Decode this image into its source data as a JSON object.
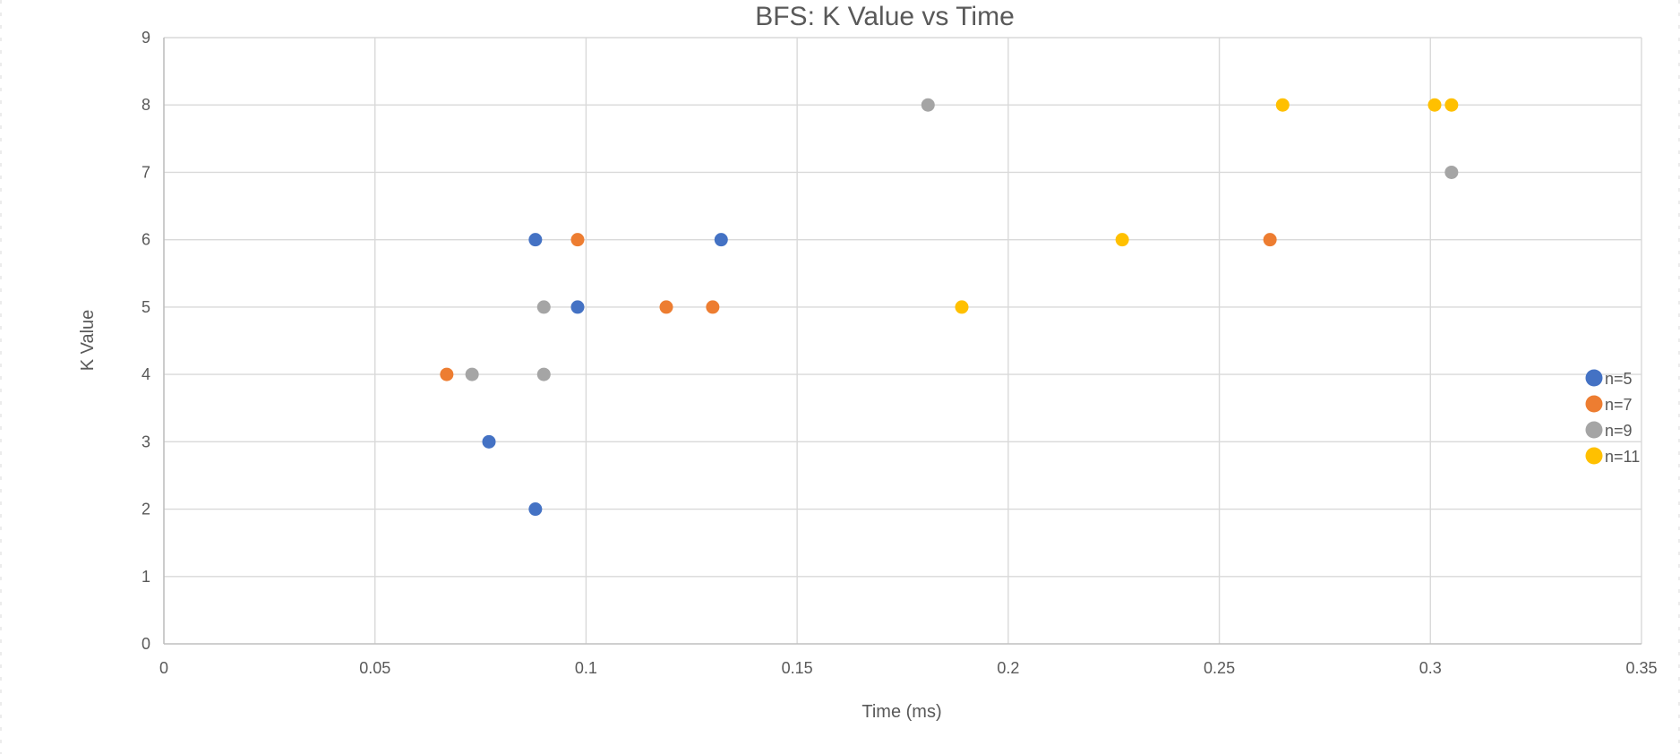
{
  "chart_data": {
    "type": "scatter",
    "title": "BFS: K Value vs Time",
    "xlabel": "Time (ms)",
    "ylabel": "K Value",
    "xlim": [
      0,
      0.35
    ],
    "ylim": [
      0,
      9
    ],
    "x_ticks": [
      0,
      0.05,
      0.1,
      0.15,
      0.2,
      0.25,
      0.3,
      0.35
    ],
    "x_tick_labels": [
      "0",
      "0.05",
      "0.1",
      "0.15",
      "0.2",
      "0.25",
      "0.3",
      "0.35"
    ],
    "y_ticks": [
      0,
      1,
      2,
      3,
      4,
      5,
      6,
      7,
      8,
      9
    ],
    "y_tick_labels": [
      "0",
      "1",
      "2",
      "3",
      "4",
      "5",
      "6",
      "7",
      "8",
      "9"
    ],
    "grid": true,
    "legend_position": "right",
    "series": [
      {
        "name": "n=5",
        "color": "#4472c4",
        "points": [
          {
            "x": 0.088,
            "y": 2
          },
          {
            "x": 0.077,
            "y": 3
          },
          {
            "x": 0.098,
            "y": 5
          },
          {
            "x": 0.088,
            "y": 6
          },
          {
            "x": 0.132,
            "y": 6
          }
        ]
      },
      {
        "name": "n=7",
        "color": "#ed7d31",
        "points": [
          {
            "x": 0.067,
            "y": 4
          },
          {
            "x": 0.119,
            "y": 5
          },
          {
            "x": 0.13,
            "y": 5
          },
          {
            "x": 0.098,
            "y": 6
          },
          {
            "x": 0.262,
            "y": 6
          }
        ]
      },
      {
        "name": "n=9",
        "color": "#a5a5a5",
        "points": [
          {
            "x": 0.073,
            "y": 4
          },
          {
            "x": 0.09,
            "y": 4
          },
          {
            "x": 0.09,
            "y": 5
          },
          {
            "x": 0.305,
            "y": 7
          },
          {
            "x": 0.181,
            "y": 8
          }
        ]
      },
      {
        "name": "n=11",
        "color": "#ffc000",
        "points": [
          {
            "x": 0.189,
            "y": 5
          },
          {
            "x": 0.227,
            "y": 6
          },
          {
            "x": 0.265,
            "y": 8
          },
          {
            "x": 0.301,
            "y": 8
          },
          {
            "x": 0.305,
            "y": 8
          }
        ]
      }
    ]
  }
}
